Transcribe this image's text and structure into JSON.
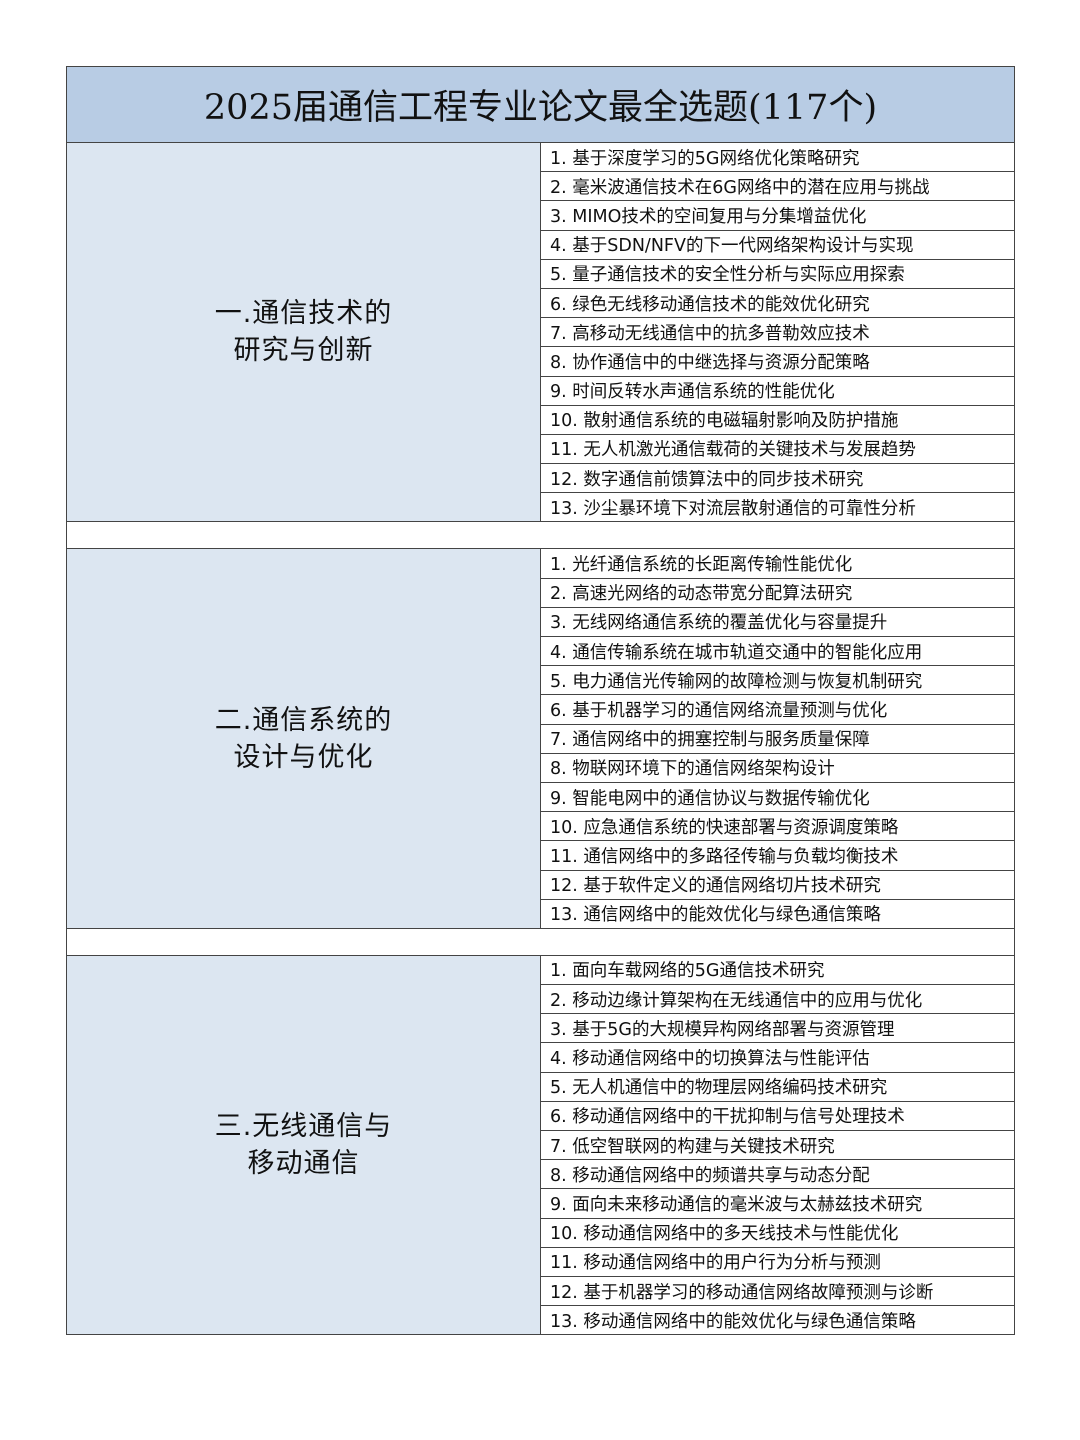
{
  "title": "2025届通信工程专业论文最全选题(117个)",
  "sections": [
    {
      "line1": "一.通信技术的",
      "line2": "研究与创新",
      "items": [
        "1. 基于深度学习的5G网络优化策略研究",
        "2. 毫米波通信技术在6G网络中的潜在应用与挑战",
        "3. MIMO技术的空间复用与分集增益优化",
        "4. 基于SDN/NFV的下一代网络架构设计与实现",
        "5. 量子通信技术的安全性分析与实际应用探索",
        "6. 绿色无线移动通信技术的能效优化研究",
        "7. 高移动无线通信中的抗多普勒效应技术",
        "8. 协作通信中的中继选择与资源分配策略",
        "9. 时间反转水声通信系统的性能优化",
        "10. 散射通信系统的电磁辐射影响及防护措施",
        "11. 无人机激光通信载荷的关键技术与发展趋势",
        "12. 数字通信前馈算法中的同步技术研究",
        "13. 沙尘暴环境下对流层散射通信的可靠性分析"
      ]
    },
    {
      "line1": "二.通信系统的",
      "line2": "设计与优化",
      "items": [
        "1. 光纤通信系统的长距离传输性能优化",
        "2. 高速光网络的动态带宽分配算法研究",
        "3. 无线网络通信系统的覆盖优化与容量提升",
        "4. 通信传输系统在城市轨道交通中的智能化应用",
        "5. 电力通信光传输网的故障检测与恢复机制研究",
        "6. 基于机器学习的通信网络流量预测与优化",
        "7. 通信网络中的拥塞控制与服务质量保障",
        "8. 物联网环境下的通信网络架构设计",
        "9. 智能电网中的通信协议与数据传输优化",
        "10. 应急通信系统的快速部署与资源调度策略",
        "11. 通信网络中的多路径传输与负载均衡技术",
        "12. 基于软件定义的通信网络切片技术研究",
        "13. 通信网络中的能效优化与绿色通信策略"
      ]
    },
    {
      "line1": "三.无线通信与",
      "line2": "移动通信",
      "items": [
        "1. 面向车载网络的5G通信技术研究",
        "2. 移动边缘计算架构在无线通信中的应用与优化",
        "3. 基于5G的大规模异构网络部署与资源管理",
        "4. 移动通信网络中的切换算法与性能评估",
        "5. 无人机通信中的物理层网络编码技术研究",
        "6. 移动通信网络中的干扰抑制与信号处理技术",
        "7. 低空智联网的构建与关键技术研究",
        "8. 移动通信网络中的频谱共享与动态分配",
        "9. 面向未来移动通信的毫米波与太赫兹技术研究",
        "10. 移动通信网络中的多天线技术与性能优化",
        "11. 移动通信网络中的用户行为分析与预测",
        "12. 基于机器学习的移动通信网络故障预测与诊断",
        "13. 移动通信网络中的能效优化与绿色通信策略"
      ]
    }
  ],
  "colors": {
    "title_bg": "#b8cce4",
    "category_bg": "#dce6f1"
  }
}
